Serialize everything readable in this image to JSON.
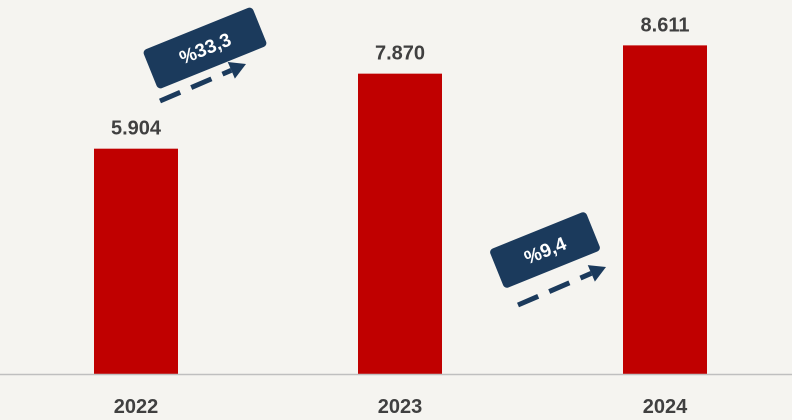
{
  "chart_data": {
    "type": "bar",
    "categories": [
      "2022",
      "2023",
      "2024"
    ],
    "values": [
      5904,
      7870,
      8611
    ],
    "value_labels": [
      "5.904",
      "7.870",
      "8.611"
    ],
    "ylim": [
      0,
      9800
    ],
    "grid": false,
    "bar_color": "#c00000",
    "annotations": [
      {
        "from": "2022",
        "to": "2023",
        "text": "%33,3"
      },
      {
        "from": "2023",
        "to": "2024",
        "text": "%9,4"
      }
    ],
    "annotation_color": "#1b3a5c",
    "axis_color": "#bfbfbf",
    "label_color": "#404040"
  }
}
